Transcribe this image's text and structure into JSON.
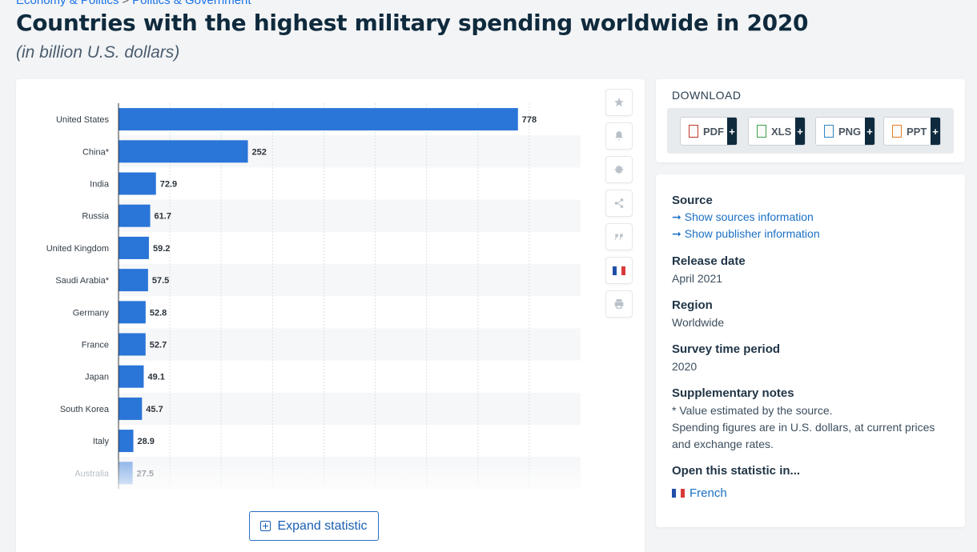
{
  "breadcrumb": {
    "item1": "Economy & Politics",
    "separator": ">",
    "item2": "Politics & Government"
  },
  "title": "Countries with the highest military spending worldwide in 2020",
  "subtitle": "(in billion U.S. dollars)",
  "chart_data": {
    "type": "bar",
    "orientation": "horizontal",
    "categories": [
      "United States",
      "China*",
      "India",
      "Russia",
      "United Kingdom",
      "Saudi Arabia*",
      "Germany",
      "France",
      "Japan",
      "South Korea",
      "Italy",
      "Australia"
    ],
    "values": [
      778,
      252,
      72.9,
      61.7,
      59.2,
      57.5,
      52.8,
      52.7,
      49.1,
      45.7,
      28.9,
      27.5
    ],
    "value_labels": [
      "778",
      "252",
      "72.9",
      "61.7",
      "59.2",
      "57.5",
      "52.8",
      "52.7",
      "49.1",
      "45.7",
      "28.9",
      "27.5"
    ],
    "xlim": [
      0,
      900
    ],
    "grid": true,
    "bar_color": "#2a75d8"
  },
  "toolbar": {
    "icons": [
      "star-icon",
      "bell-icon",
      "gear-icon",
      "share-icon",
      "quote-icon",
      "french-flag-icon",
      "print-icon"
    ]
  },
  "expand_label": "Expand statistic",
  "download": {
    "title": "DOWNLOAD",
    "buttons": [
      {
        "label": "PDF",
        "icon": "pdf-file-icon",
        "color": "#c0392b"
      },
      {
        "label": "XLS",
        "icon": "xls-file-icon",
        "color": "#3aa14a"
      },
      {
        "label": "PNG",
        "icon": "png-file-icon",
        "color": "#2e86c1"
      },
      {
        "label": "PPT",
        "icon": "ppt-file-icon",
        "color": "#e67e22"
      }
    ],
    "plus": "+"
  },
  "info": {
    "source_head": "Source",
    "source_link1": "Show sources information",
    "source_link2": "Show publisher information",
    "release_head": "Release date",
    "release_val": "April 2021",
    "region_head": "Region",
    "region_val": "Worldwide",
    "survey_head": "Survey time period",
    "survey_val": "2020",
    "notes_head": "Supplementary notes",
    "notes_line1": "* Value estimated by the source.",
    "notes_line2": "Spending figures are in U.S. dollars, at current prices and exchange rates.",
    "open_head": "Open this statistic in...",
    "open_link": "French"
  },
  "colors": {
    "accent": "#1a6fc4",
    "bar": "#2a75d8",
    "title": "#0f2a3d"
  }
}
